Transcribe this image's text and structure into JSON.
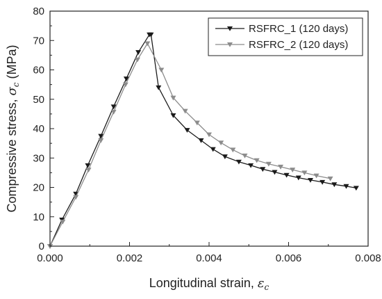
{
  "chart_data": {
    "type": "line",
    "xlabel": {
      "text": "Longitudinal strain, ",
      "symbol": "ε",
      "subscript": "c"
    },
    "ylabel": {
      "text": "Compressive stress, ",
      "symbol": "σ",
      "subscript": "c",
      "unit": " (MPa)"
    },
    "xlim": [
      0,
      0.008
    ],
    "ylim": [
      0,
      80
    ],
    "x_ticks": [
      "0.000",
      "0.002",
      "0.004",
      "0.006",
      "0.008"
    ],
    "y_ticks": [
      "0",
      "10",
      "20",
      "30",
      "40",
      "50",
      "60",
      "70",
      "80"
    ],
    "grid": false,
    "legend": {
      "position": "top-right"
    },
    "series": [
      {
        "name": "RSFRC_1 (120 days)",
        "color": "#1a1a1a",
        "marker": "triangle-down",
        "points": [
          [
            0.0,
            0.0
          ],
          [
            0.0003,
            9.0
          ],
          [
            0.00065,
            17.8
          ],
          [
            0.00095,
            27.5
          ],
          [
            0.00128,
            37.5
          ],
          [
            0.0016,
            47.5
          ],
          [
            0.00192,
            57.0
          ],
          [
            0.00222,
            66.0
          ],
          [
            0.0025,
            72.0
          ],
          [
            0.00254,
            72.0
          ],
          [
            0.00273,
            54.0
          ],
          [
            0.0031,
            44.5
          ],
          [
            0.00345,
            39.5
          ],
          [
            0.0038,
            36.0
          ],
          [
            0.0041,
            33.0
          ],
          [
            0.0044,
            30.5
          ],
          [
            0.00475,
            28.7
          ],
          [
            0.00505,
            27.5
          ],
          [
            0.00535,
            26.2
          ],
          [
            0.00565,
            25.2
          ],
          [
            0.00595,
            24.2
          ],
          [
            0.00625,
            23.3
          ],
          [
            0.00655,
            22.5
          ],
          [
            0.00685,
            21.8
          ],
          [
            0.00715,
            21.0
          ],
          [
            0.00745,
            20.4
          ],
          [
            0.0077,
            19.8
          ]
        ]
      },
      {
        "name": "RSFRC_2 (120 days)",
        "color": "#8c8c8c",
        "marker": "triangle-down",
        "points": [
          [
            0.0,
            0.0
          ],
          [
            0.00032,
            8.3
          ],
          [
            0.00065,
            16.7
          ],
          [
            0.00097,
            26.0
          ],
          [
            0.00128,
            36.0
          ],
          [
            0.0016,
            45.7
          ],
          [
            0.0019,
            55.0
          ],
          [
            0.0022,
            63.5
          ],
          [
            0.00245,
            69.0
          ],
          [
            0.0028,
            60.0
          ],
          [
            0.0031,
            50.5
          ],
          [
            0.0034,
            46.0
          ],
          [
            0.0037,
            42.0
          ],
          [
            0.004,
            38.0
          ],
          [
            0.0043,
            35.2
          ],
          [
            0.0046,
            32.8
          ],
          [
            0.0049,
            30.8
          ],
          [
            0.0052,
            29.2
          ],
          [
            0.0055,
            28.0
          ],
          [
            0.0058,
            27.0
          ],
          [
            0.0061,
            26.0
          ],
          [
            0.0064,
            25.0
          ],
          [
            0.0067,
            24.0
          ],
          [
            0.00705,
            23.0
          ]
        ]
      }
    ]
  }
}
